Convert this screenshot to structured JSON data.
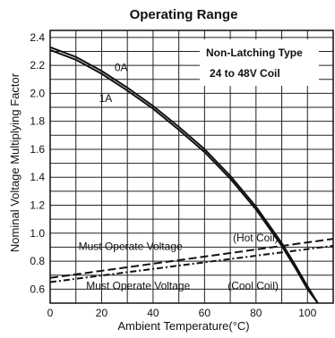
{
  "chart_data": {
    "type": "line",
    "title": "Operating Range",
    "xlabel": "Ambient Temperature(°C)",
    "ylabel": "Nominal Voltage Multiplying Factor",
    "xlim": [
      0,
      110
    ],
    "ylim": [
      0.5,
      2.45
    ],
    "x_ticks": [
      "0",
      "20",
      "40",
      "60",
      "80",
      "100"
    ],
    "y_ticks": [
      "0.6",
      "0.8",
      "1.0",
      "1.2",
      "1.4",
      "1.6",
      "1.8",
      "2.0",
      "2.2",
      "2.4"
    ],
    "grid": true,
    "note_lines": [
      "Non-Latching Type",
      "24 to 48V Coil"
    ],
    "series": [
      {
        "name": "0A",
        "style": "solid",
        "x": [
          0,
          10,
          20,
          30,
          40,
          50,
          60,
          70,
          80,
          90,
          95,
          100,
          104
        ],
        "y": [
          2.33,
          2.26,
          2.16,
          2.04,
          1.91,
          1.76,
          1.6,
          1.41,
          1.19,
          0.93,
          0.78,
          0.62,
          0.5
        ]
      },
      {
        "name": "1A",
        "style": "solid",
        "x": [
          0,
          10,
          20,
          30,
          40,
          50,
          60,
          70,
          80,
          90,
          95,
          100,
          104
        ],
        "y": [
          2.31,
          2.24,
          2.14,
          2.02,
          1.89,
          1.74,
          1.58,
          1.39,
          1.17,
          0.91,
          0.76,
          0.6,
          0.5
        ]
      },
      {
        "name": "Must Operate Voltage (Hot Coil)",
        "style": "dashed",
        "x": [
          0,
          110
        ],
        "y": [
          0.68,
          0.96
        ]
      },
      {
        "name": "Must Operate Voltage (Cool Coil)",
        "style": "dashdot",
        "x": [
          0,
          110
        ],
        "y": [
          0.65,
          0.91
        ]
      }
    ],
    "annotations": [
      {
        "text": "0A",
        "x": 25,
        "y": 2.16
      },
      {
        "text": "1A",
        "x": 19,
        "y": 1.94
      },
      {
        "text": "Must Operate Voltage",
        "x": 11,
        "y": 0.88
      },
      {
        "text": "(Hot Coil)",
        "x": 71,
        "y": 0.94
      },
      {
        "text": "Must Operate Voltage",
        "x": 14,
        "y": 0.6
      },
      {
        "text": "(Cool Coil)",
        "x": 69,
        "y": 0.6
      }
    ]
  }
}
